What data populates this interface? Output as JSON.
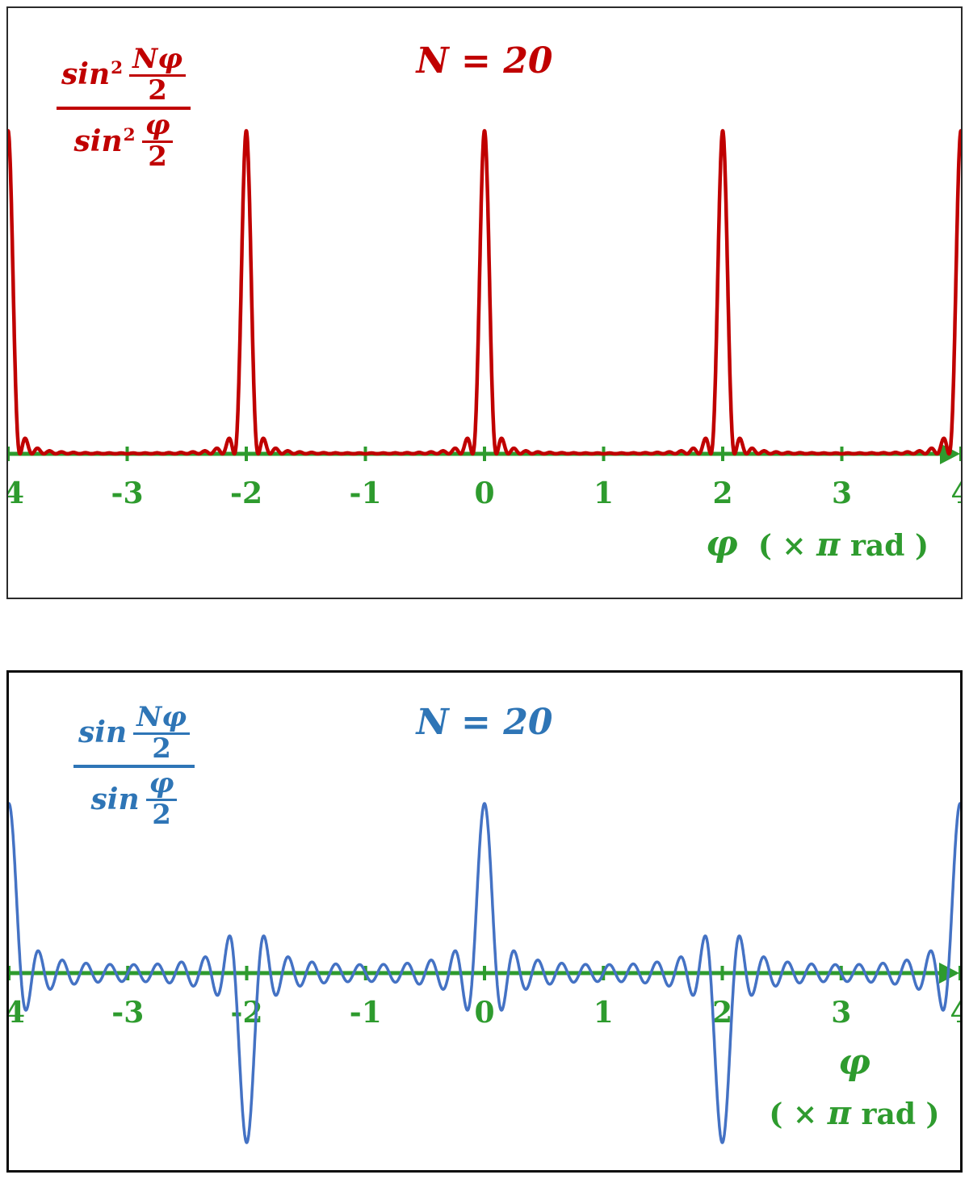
{
  "panels": {
    "top": {
      "title": "N = 20",
      "formula": {
        "fn": "sin",
        "sup": "2",
        "num_n": "Nφ",
        "num_d": "2",
        "den_n": "φ",
        "den_d": "2"
      },
      "axis_label": {
        "phi": "φ",
        "open": "( ×",
        "pi": "π",
        "close": "rad )"
      },
      "colors": {
        "curve": "#C00000",
        "text": "#C00000",
        "axis": "#2E9B2E"
      }
    },
    "bottom": {
      "title": "N = 20",
      "formula": {
        "fn": "sin",
        "num_n": "Nφ",
        "num_d": "2",
        "den_n": "φ",
        "den_d": "2"
      },
      "axis_label": {
        "phi": "φ",
        "open": "( ×",
        "pi": "π",
        "close": "rad )"
      },
      "colors": {
        "curve": "#4472C4",
        "text": "#2E75B6",
        "axis": "#2E9B2E"
      }
    }
  },
  "chart_data": [
    {
      "type": "line",
      "panel": "top",
      "title": "N = 20",
      "series": [
        {
          "name": "sin²(Nφ/2) / sin²(φ/2)",
          "formula": "sin2_ratio",
          "N": 20
        }
      ],
      "x": {
        "label": "φ ( × π rad )",
        "units": "π rad",
        "min": -4,
        "max": 4,
        "ticks": [
          -4,
          -3,
          -2,
          -1,
          0,
          1,
          2,
          3,
          4
        ]
      },
      "y": {
        "min": 0,
        "max": 400,
        "axis_shown": false
      },
      "peaks": {
        "at": [
          -4,
          -2,
          0,
          2,
          4
        ],
        "value": 400
      },
      "grid": false,
      "color": "#C00000",
      "axis_color": "#2E9B2E"
    },
    {
      "type": "line",
      "panel": "bottom",
      "title": "N = 20",
      "series": [
        {
          "name": "sin(Nφ/2) / sin(φ/2)",
          "formula": "sin_ratio",
          "N": 20
        }
      ],
      "x": {
        "label": "φ ( × π rad )",
        "units": "π rad",
        "min": -4,
        "max": 4,
        "ticks": [
          -4,
          -3,
          -2,
          -1,
          0,
          1,
          2,
          3,
          4
        ]
      },
      "y": {
        "min": -20,
        "max": 20,
        "axis_shown": false
      },
      "peaks": {
        "positive": {
          "at": [
            -4,
            0,
            4
          ],
          "value": 20
        },
        "negative": {
          "at": [
            -2,
            2
          ],
          "value": -20
        }
      },
      "grid": false,
      "color": "#4472C4",
      "axis_color": "#2E9B2E"
    }
  ]
}
